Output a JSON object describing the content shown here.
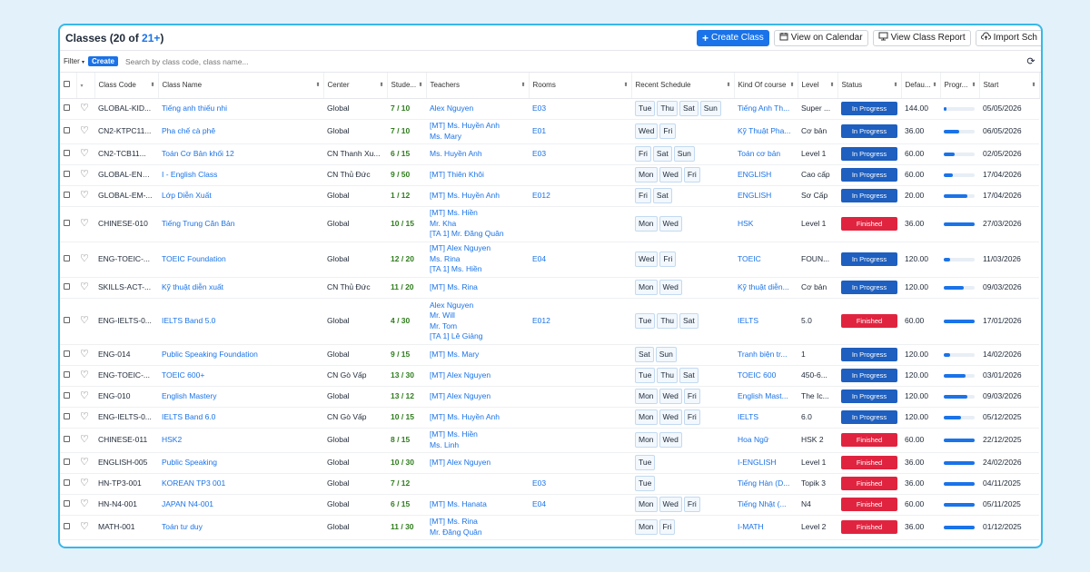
{
  "header": {
    "title_prefix": "Classes (20 of ",
    "title_count": "21+",
    "title_suffix": ")",
    "create_button": "Create Class",
    "calendar_button": "View on Calendar",
    "report_button": "View Class Report",
    "import_button": "Import Sch"
  },
  "filters": {
    "filter_label": "Filter",
    "create_label": "Create",
    "search_placeholder": "Search by class code, class name..."
  },
  "columns": [
    "Class Code",
    "Class Name",
    "Center",
    "Stude...",
    "Teachers",
    "Rooms",
    "Recent Schedule",
    "Kind Of course",
    "Level",
    "Status",
    "Defau...",
    "Progr...",
    "Start"
  ],
  "colors": {
    "accent": "#1a73e8",
    "in_progress": "#1e5fbf",
    "finished": "#e0243f",
    "students": "#2e7d1c"
  },
  "rows": [
    {
      "code": "GLOBAL-KID...",
      "name": "Tiếng anh thiếu nhi",
      "center": "Global",
      "students": "7 / 10",
      "teachers": [
        "Alex Nguyen"
      ],
      "room": "E03",
      "days": [
        "Tue",
        "Thu",
        "Sat",
        "Sun"
      ],
      "kind": "Tiếng Anh Th...",
      "level": "Super ...",
      "status": "In Progress",
      "fee": "144.00",
      "progress": 0.1,
      "start": "05/05/2026"
    },
    {
      "code": "CN2-KTPC11...",
      "name": "Pha chế cà phê",
      "center": "Global",
      "students": "7 / 10",
      "teachers": [
        "[MT] Ms. Huyền Anh",
        "Ms. Mary"
      ],
      "room": "E01",
      "days": [
        "Wed",
        "Fri"
      ],
      "kind": "Kỹ Thuật Pha...",
      "level": "Cơ bản",
      "status": "In Progress",
      "fee": "36.00",
      "progress": 0.5,
      "start": "06/05/2026"
    },
    {
      "code": "CN2-TCB11...",
      "name": "Toán Cơ Bản khối 12",
      "center": "CN Thanh Xu...",
      "students": "6 / 15",
      "teachers": [
        "Ms. Huyền Anh"
      ],
      "room": "E03",
      "days": [
        "Fri",
        "Sat",
        "Sun"
      ],
      "kind": "Toán cơ bản",
      "level": "Level 1",
      "status": "In Progress",
      "fee": "60.00",
      "progress": 0.35,
      "start": "02/05/2026"
    },
    {
      "code": "GLOBAL-ENG...",
      "name": "I - English Class",
      "center": "CN Thủ Đức",
      "students": "9 / 50",
      "teachers": [
        "[MT] Thiên Khôi"
      ],
      "room": "",
      "days": [
        "Mon",
        "Wed",
        "Fri"
      ],
      "kind": "ENGLISH",
      "level": "Cao cấp",
      "status": "In Progress",
      "fee": "60.00",
      "progress": 0.3,
      "start": "17/04/2026"
    },
    {
      "code": "GLOBAL-EM-...",
      "name": "Lớp Diễn Xuất",
      "center": "Global",
      "students": "1 / 12",
      "teachers": [
        "[MT] Ms. Huyền Anh"
      ],
      "room": "E012",
      "days": [
        "Fri",
        "Sat"
      ],
      "kind": "ENGLISH",
      "level": "Sơ Cấp",
      "status": "In Progress",
      "fee": "20.00",
      "progress": 0.75,
      "start": "17/04/2026"
    },
    {
      "code": "CHINESE-010",
      "name": "Tiếng Trung Căn Bản",
      "center": "Global",
      "students": "10 / 15",
      "teachers": [
        "[MT] Ms. Hiền",
        "Mr. Kha",
        "[TA 1] Mr. Đăng Quân"
      ],
      "room": "",
      "days": [
        "Mon",
        "Wed"
      ],
      "kind": "HSK",
      "level": "Level 1",
      "status": "Finished",
      "fee": "36.00",
      "progress": 1.0,
      "start": "27/03/2026"
    },
    {
      "code": "ENG-TOEIC-...",
      "name": "TOEIC Foundation",
      "center": "Global",
      "students": "12 / 20",
      "teachers": [
        "[MT] Alex Nguyen",
        "Ms. Rina",
        "[TA 1] Ms. Hiền"
      ],
      "room": "E04",
      "days": [
        "Wed",
        "Fri"
      ],
      "kind": "TOEIC",
      "level": "FOUN...",
      "status": "In Progress",
      "fee": "120.00",
      "progress": 0.2,
      "start": "11/03/2026"
    },
    {
      "code": "SKILLS-ACT-...",
      "name": "Kỹ thuật diễn xuất",
      "center": "CN Thủ Đức",
      "students": "11 / 20",
      "teachers": [
        "[MT] Ms. Rina"
      ],
      "room": "",
      "days": [
        "Mon",
        "Wed"
      ],
      "kind": "Kỹ thuật diễn...",
      "level": "Cơ bản",
      "status": "In Progress",
      "fee": "120.00",
      "progress": 0.65,
      "start": "09/03/2026"
    },
    {
      "code": "ENG-IELTS-0...",
      "name": "IELTS Band 5.0",
      "center": "Global",
      "students": "4 / 30",
      "teachers": [
        "Alex Nguyen",
        "Mr. Will",
        "Mr. Tom",
        "[TA 1] Lê Giảng"
      ],
      "room": "E012",
      "days": [
        "Tue",
        "Thu",
        "Sat"
      ],
      "kind": "IELTS",
      "level": "5.0",
      "status": "Finished",
      "fee": "60.00",
      "progress": 1.0,
      "start": "17/01/2026"
    },
    {
      "code": "ENG-014",
      "name": "Public Speaking Foundation",
      "center": "Global",
      "students": "9 / 15",
      "teachers": [
        "[MT] Ms. Mary"
      ],
      "room": "",
      "days": [
        "Sat",
        "Sun"
      ],
      "kind": "Tranh biện tr...",
      "level": "1",
      "status": "In Progress",
      "fee": "120.00",
      "progress": 0.2,
      "start": "14/02/2026"
    },
    {
      "code": "ENG-TOEIC-...",
      "name": "TOEIC 600+",
      "center": "CN Gò Vấp",
      "students": "13 / 30",
      "teachers": [
        "[MT] Alex Nguyen"
      ],
      "room": "",
      "days": [
        "Tue",
        "Thu",
        "Sat"
      ],
      "kind": "TOEIC 600",
      "level": "450-6...",
      "status": "In Progress",
      "fee": "120.00",
      "progress": 0.7,
      "start": "03/01/2026"
    },
    {
      "code": "ENG-010",
      "name": "English Mastery",
      "center": "Global",
      "students": "13 / 12",
      "teachers": [
        "[MT] Alex Nguyen"
      ],
      "room": "",
      "days": [
        "Mon",
        "Wed",
        "Fri"
      ],
      "kind": "English Mast...",
      "level": "The Ic...",
      "status": "In Progress",
      "fee": "120.00",
      "progress": 0.75,
      "start": "09/03/2026"
    },
    {
      "code": "ENG-IELTS-0...",
      "name": "IELTS Band 6.0",
      "center": "CN Gò Vấp",
      "students": "10 / 15",
      "teachers": [
        "[MT] Ms. Huyền Anh"
      ],
      "room": "",
      "days": [
        "Mon",
        "Wed",
        "Fri"
      ],
      "kind": "IELTS",
      "level": "6.0",
      "status": "In Progress",
      "fee": "120.00",
      "progress": 0.55,
      "start": "05/12/2025"
    },
    {
      "code": "CHINESE-011",
      "name": "HSK2",
      "center": "Global",
      "students": "8 / 15",
      "teachers": [
        "[MT] Ms. Hiền",
        "Ms. Linh"
      ],
      "room": "",
      "days": [
        "Mon",
        "Wed"
      ],
      "kind": "Hoa Ngữ",
      "level": "HSK 2",
      "status": "Finished",
      "fee": "60.00",
      "progress": 1.0,
      "start": "22/12/2025"
    },
    {
      "code": "ENGLISH-005",
      "name": "Public Speaking",
      "center": "Global",
      "students": "10 / 30",
      "teachers": [
        "[MT] Alex Nguyen"
      ],
      "room": "",
      "days": [
        "Tue"
      ],
      "kind": "I-ENGLISH",
      "level": "Level 1",
      "status": "Finished",
      "fee": "36.00",
      "progress": 1.0,
      "start": "24/02/2026"
    },
    {
      "code": "HN-TP3-001",
      "name": "KOREAN TP3 001",
      "center": "Global",
      "students": "7 / 12",
      "teachers": [],
      "room": "E03",
      "days": [
        "Tue"
      ],
      "kind": "Tiếng Hàn (D...",
      "level": "Topik 3",
      "status": "Finished",
      "fee": "36.00",
      "progress": 1.0,
      "start": "04/11/2025"
    },
    {
      "code": "HN-N4-001",
      "name": "JAPAN N4-001",
      "center": "Global",
      "students": "6 / 15",
      "teachers": [
        "[MT] Ms. Hanata"
      ],
      "room": "E04",
      "days": [
        "Mon",
        "Wed",
        "Fri"
      ],
      "kind": "Tiếng Nhật (...",
      "level": "N4",
      "status": "Finished",
      "fee": "60.00",
      "progress": 1.0,
      "start": "05/11/2025"
    },
    {
      "code": "MATH-001",
      "name": "Toán tư duy",
      "center": "Global",
      "students": "11 / 30",
      "teachers": [
        "[MT] Ms. Rina",
        "Mr. Đăng Quân"
      ],
      "room": "",
      "days": [
        "Mon",
        "Fri"
      ],
      "kind": "I-MATH",
      "level": "Level 2",
      "status": "Finished",
      "fee": "36.00",
      "progress": 1.0,
      "start": "01/12/2025"
    }
  ]
}
